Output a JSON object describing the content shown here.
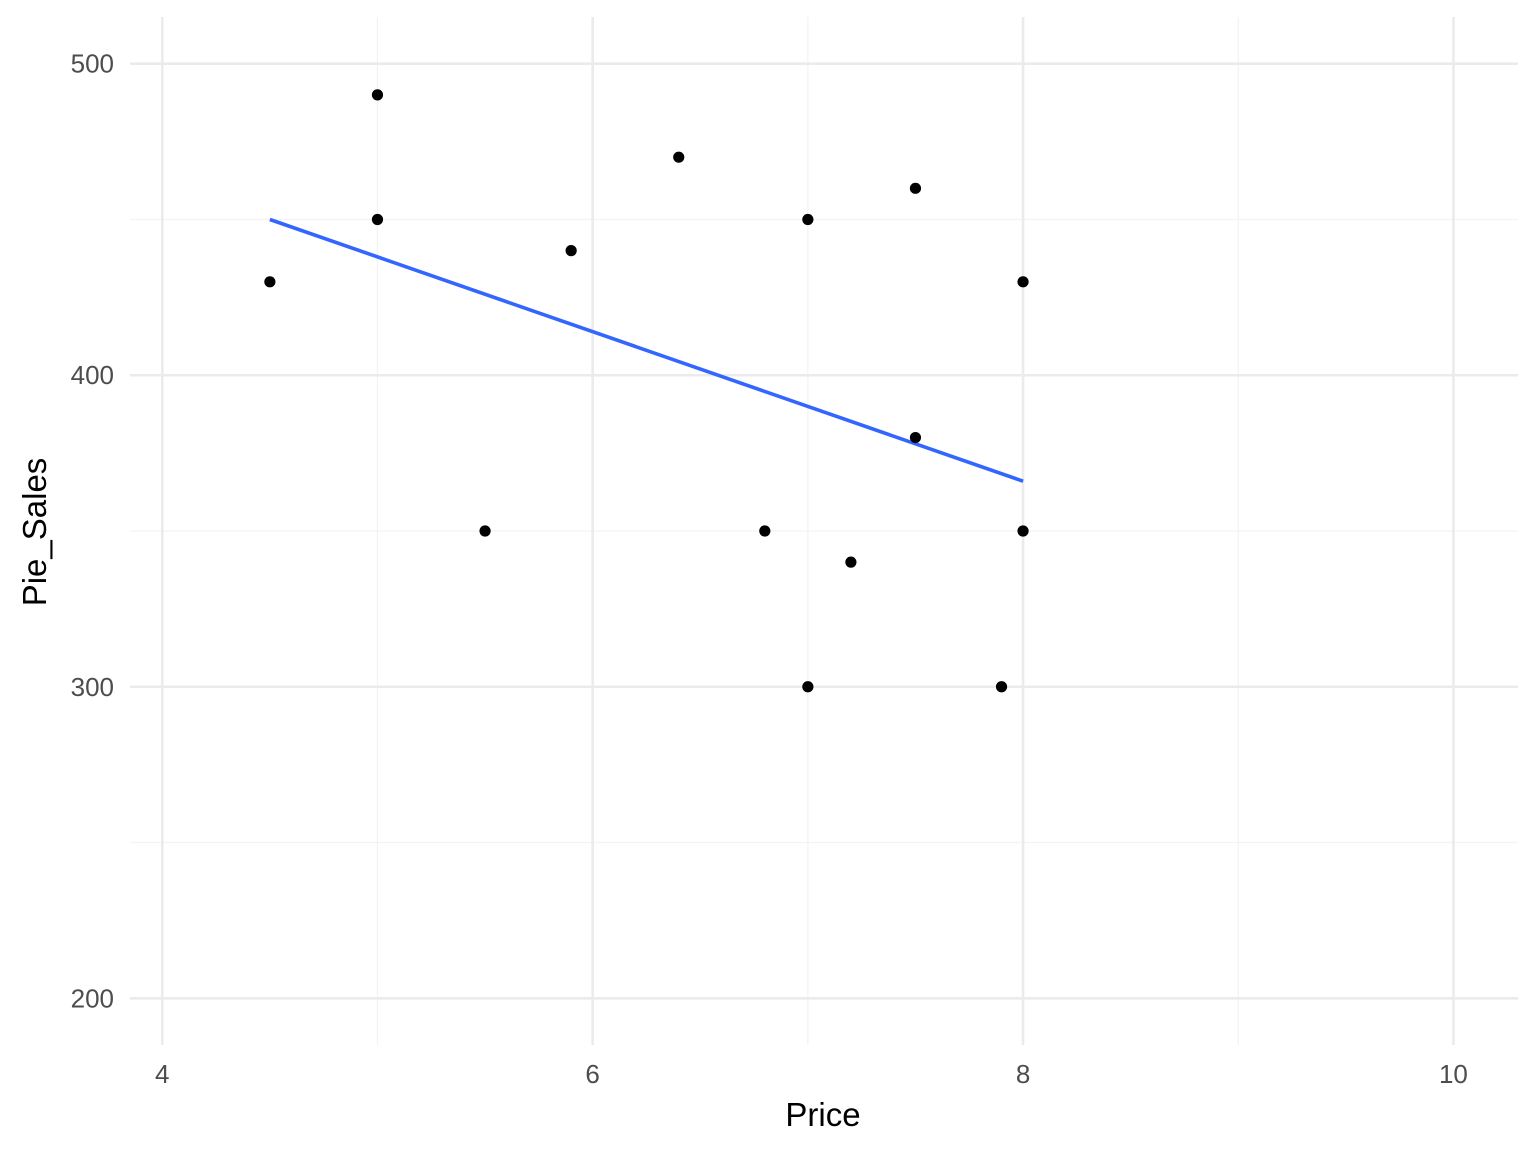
{
  "chart_data": {
    "type": "scatter",
    "title": "",
    "xlabel": "Price",
    "ylabel": "Pie_Sales",
    "xlim": [
      3.85,
      10.3
    ],
    "ylim": [
      185,
      515
    ],
    "x_ticks": [
      4,
      6,
      8,
      10
    ],
    "x_tick_labels": [
      "4",
      "6",
      "8",
      "10"
    ],
    "x_minor_ticks": [
      5,
      7,
      9
    ],
    "y_ticks": [
      200,
      300,
      400,
      500
    ],
    "y_tick_labels": [
      "200",
      "300",
      "400",
      "500"
    ],
    "y_minor_ticks": [
      250,
      350,
      450
    ],
    "grid": true,
    "legend": "none",
    "series": [
      {
        "type": "points",
        "color": "#000000",
        "points": [
          {
            "x": 4.5,
            "y": 430
          },
          {
            "x": 5.0,
            "y": 490
          },
          {
            "x": 5.0,
            "y": 450
          },
          {
            "x": 5.5,
            "y": 350
          },
          {
            "x": 5.9,
            "y": 440
          },
          {
            "x": 6.4,
            "y": 470
          },
          {
            "x": 6.8,
            "y": 350
          },
          {
            "x": 7.0,
            "y": 450
          },
          {
            "x": 7.0,
            "y": 300
          },
          {
            "x": 7.2,
            "y": 340
          },
          {
            "x": 7.5,
            "y": 460
          },
          {
            "x": 7.5,
            "y": 380
          },
          {
            "x": 7.9,
            "y": 300
          },
          {
            "x": 8.0,
            "y": 430
          },
          {
            "x": 8.0,
            "y": 350
          }
        ]
      },
      {
        "type": "trend-line",
        "method": "linear regression",
        "color": "#3366FF",
        "points": [
          {
            "x": 4.5,
            "y": 450
          },
          {
            "x": 8.0,
            "y": 366
          }
        ]
      }
    ]
  }
}
